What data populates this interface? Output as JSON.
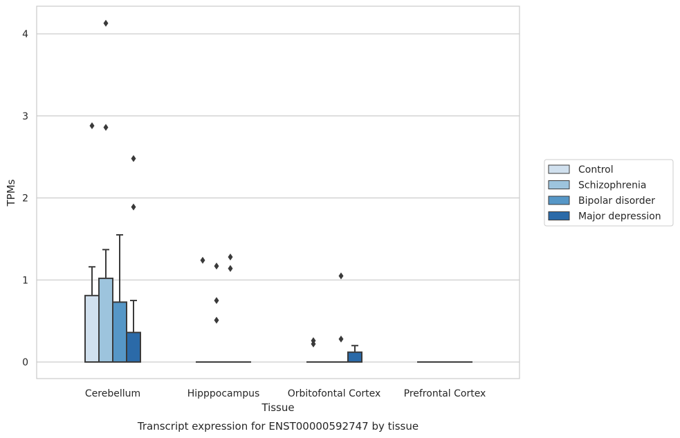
{
  "chart_data": {
    "type": "box",
    "caption": "Transcript expression for ENST00000592747 by tissue",
    "xlabel": "Tissue",
    "ylabel": "TPMs",
    "ylim": [
      -0.2,
      4.35
    ],
    "yticks": [
      0,
      1,
      2,
      3,
      4
    ],
    "grid": "horizontal",
    "legend_position": "right",
    "categories": [
      "Cerebellum",
      "Hipppocampus",
      "Orbitofontal Cortex",
      "Prefrontal Cortex"
    ],
    "series": [
      {
        "name": "Control",
        "color": "#d0e0ee",
        "boxes": [
          {
            "q1": 0,
            "median": 0,
            "q3": 0.81,
            "whisker_low": 0,
            "whisker_high": 1.16,
            "outliers": [
              2.88
            ]
          },
          {
            "q1": 0,
            "median": 0,
            "q3": 0,
            "whisker_low": 0,
            "whisker_high": 0,
            "outliers": [
              1.24
            ]
          },
          {
            "q1": 0,
            "median": 0,
            "q3": 0,
            "whisker_low": 0,
            "whisker_high": 0,
            "outliers": [
              0.22,
              0.26
            ]
          },
          {
            "q1": 0,
            "median": 0,
            "q3": 0,
            "whisker_low": 0,
            "whisker_high": 0,
            "outliers": []
          }
        ]
      },
      {
        "name": "Schizophrenia",
        "color": "#9dc4dd",
        "boxes": [
          {
            "q1": 0,
            "median": 0,
            "q3": 1.02,
            "whisker_low": 0,
            "whisker_high": 1.37,
            "outliers": [
              2.86,
              4.13
            ]
          },
          {
            "q1": 0,
            "median": 0,
            "q3": 0,
            "whisker_low": 0,
            "whisker_high": 0,
            "outliers": [
              0.51,
              0.75,
              1.17
            ]
          },
          {
            "q1": 0,
            "median": 0,
            "q3": 0,
            "whisker_low": 0,
            "whisker_high": 0,
            "outliers": []
          },
          {
            "q1": 0,
            "median": 0,
            "q3": 0,
            "whisker_low": 0,
            "whisker_high": 0,
            "outliers": []
          }
        ]
      },
      {
        "name": "Bipolar disorder",
        "color": "#5697c7",
        "boxes": [
          {
            "q1": 0,
            "median": 0,
            "q3": 0.73,
            "whisker_low": 0,
            "whisker_high": 1.55,
            "outliers": []
          },
          {
            "q1": 0,
            "median": 0,
            "q3": 0,
            "whisker_low": 0,
            "whisker_high": 0,
            "outliers": [
              1.14,
              1.28
            ]
          },
          {
            "q1": 0,
            "median": 0,
            "q3": 0,
            "whisker_low": 0,
            "whisker_high": 0,
            "outliers": [
              0.28,
              1.05
            ]
          },
          {
            "q1": 0,
            "median": 0,
            "q3": 0,
            "whisker_low": 0,
            "whisker_high": 0,
            "outliers": []
          }
        ]
      },
      {
        "name": "Major depression",
        "color": "#2b6aa8",
        "boxes": [
          {
            "q1": 0,
            "median": 0,
            "q3": 0.36,
            "whisker_low": 0,
            "whisker_high": 0.75,
            "outliers": [
              1.89,
              2.48
            ]
          },
          {
            "q1": 0,
            "median": 0,
            "q3": 0,
            "whisker_low": 0,
            "whisker_high": 0,
            "outliers": []
          },
          {
            "q1": 0,
            "median": 0,
            "q3": 0.12,
            "whisker_low": 0,
            "whisker_high": 0.2,
            "outliers": []
          },
          {
            "q1": 0,
            "median": 0,
            "q3": 0,
            "whisker_low": 0,
            "whisker_high": 0,
            "outliers": []
          }
        ]
      }
    ]
  }
}
